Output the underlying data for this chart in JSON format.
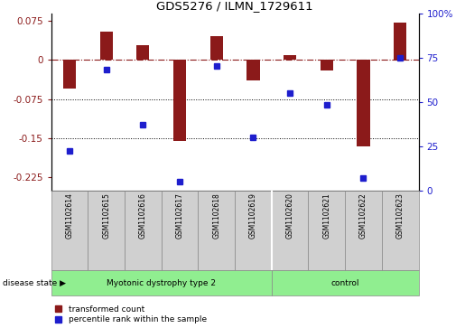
{
  "title": "GDS5276 / ILMN_1729611",
  "samples": [
    "GSM1102614",
    "GSM1102615",
    "GSM1102616",
    "GSM1102617",
    "GSM1102618",
    "GSM1102619",
    "GSM1102620",
    "GSM1102621",
    "GSM1102622",
    "GSM1102623"
  ],
  "red_values": [
    -0.055,
    0.055,
    0.028,
    -0.155,
    0.045,
    -0.04,
    0.01,
    -0.02,
    -0.165,
    0.072
  ],
  "blue_values": [
    22,
    68,
    37,
    5,
    70,
    30,
    55,
    48,
    7,
    75
  ],
  "group1_samples": 6,
  "group1_label": "Myotonic dystrophy type 2",
  "group2_label": "control",
  "red_ylim": [
    -0.25,
    0.09
  ],
  "red_yticks": [
    0.075,
    0,
    -0.075,
    -0.15,
    -0.225
  ],
  "blue_ylim": [
    0,
    100
  ],
  "blue_yticks": [
    100,
    75,
    50,
    25,
    0
  ],
  "blue_ytick_labels": [
    "100%",
    "75",
    "50",
    "25",
    "0"
  ],
  "hlines": [
    -0.075,
    -0.15
  ],
  "red_color": "#8B1A1A",
  "blue_color": "#1E1ECD",
  "green_color": "#90EE90",
  "gray_color": "#D0D0D0",
  "bar_width": 0.35,
  "disease_state_label": "disease state",
  "legend_red": "transformed count",
  "legend_blue": "percentile rank within the sample"
}
